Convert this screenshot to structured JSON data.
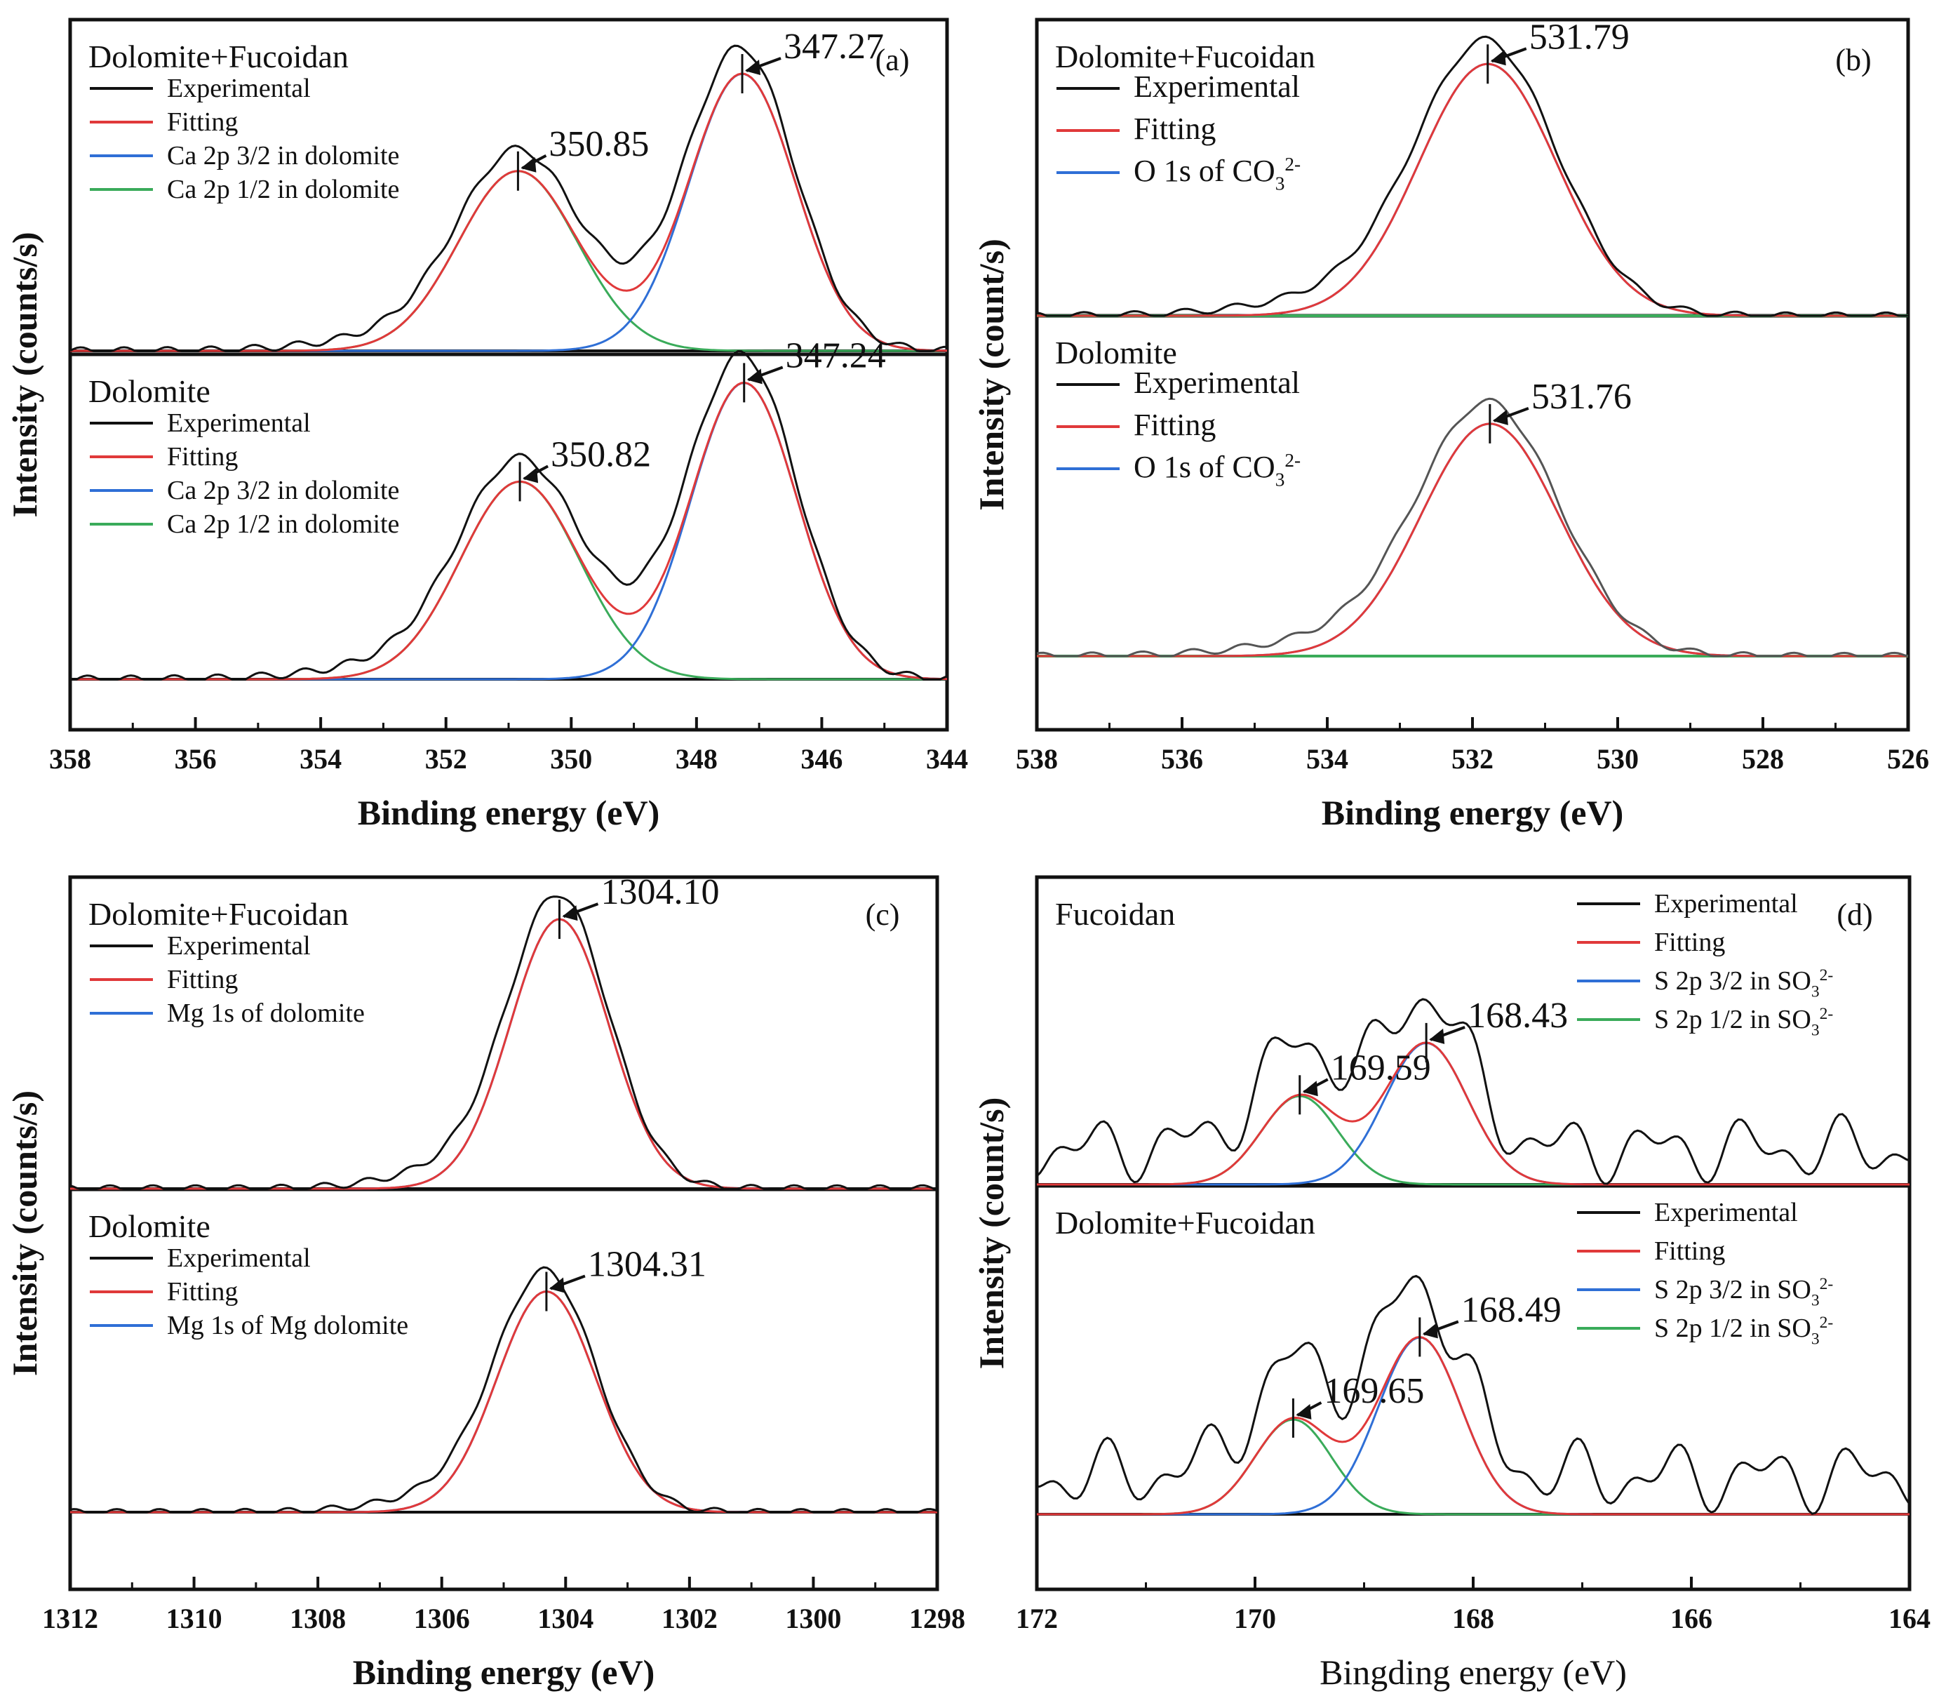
{
  "colors": {
    "experimental": "#111111",
    "experimental_gray": "#555555",
    "fitting": "#e0393a",
    "blue": "#2f6fd6",
    "green": "#3aab5a"
  },
  "chart_data": [
    {
      "type": "line",
      "id": "a",
      "panel_label": "(a)",
      "xlabel": "Binding energy (eV)",
      "ylabel": "Intensity (counts/s)",
      "xlim": [
        358,
        344
      ],
      "xticks": [
        358,
        356,
        354,
        352,
        350,
        348,
        346,
        344
      ],
      "subplots": [
        {
          "title": "Dolomite+Fucoidan",
          "legend": [
            "Experimental",
            "Fitting",
            "Ca 2p 3/2 in dolomite",
            "Ca 2p 1/2 in dolomite"
          ],
          "peaks": [
            {
              "label": "350.85",
              "x": 350.85,
              "height": 0.61,
              "series": "Ca 2p 1/2 in dolomite",
              "width": 0.95
            },
            {
              "label": "347.27",
              "x": 347.27,
              "height": 0.94,
              "series": "Ca 2p 3/2 in dolomite",
              "width": 0.85
            }
          ]
        },
        {
          "title": "Dolomite",
          "legend": [
            "Experimental",
            "Fitting",
            "Ca 2p 3/2 in dolomite",
            "Ca 2p 1/2 in dolomite"
          ],
          "peaks": [
            {
              "label": "350.82",
              "x": 350.82,
              "height": 0.64,
              "series": "Ca 2p 1/2 in dolomite",
              "width": 0.95
            },
            {
              "label": "347.24",
              "x": 347.24,
              "height": 0.96,
              "series": "Ca 2p 3/2 in dolomite",
              "width": 0.85
            }
          ]
        }
      ]
    },
    {
      "type": "line",
      "id": "b",
      "panel_label": "(b)",
      "xlabel": "Binding energy (eV)",
      "ylabel": "Intensity (count/s)",
      "xlim": [
        538,
        526
      ],
      "xticks": [
        538,
        536,
        534,
        532,
        530,
        528,
        526
      ],
      "subplots": [
        {
          "title": "Dolomite+Fucoidan",
          "legend": [
            "Experimental",
            "Fitting",
            "O 1s of CO3 2-"
          ],
          "peaks": [
            {
              "label": "531.79",
              "x": 531.79,
              "height": 0.92,
              "series": "O 1s of CO3 2-",
              "width": 0.95
            }
          ]
        },
        {
          "title": "Dolomite",
          "legend": [
            "Experimental",
            "Fitting",
            "O 1s of CO3 2-"
          ],
          "peaks": [
            {
              "label": "531.76",
              "x": 531.76,
              "height": 0.86,
              "series": "O 1s of CO3 2-",
              "width": 0.95
            }
          ]
        }
      ]
    },
    {
      "type": "line",
      "id": "c",
      "panel_label": "(c)",
      "xlabel": "Binding energy (eV)",
      "ylabel": "Intensity (counts/s)",
      "xlim": [
        1312,
        1298
      ],
      "xticks": [
        1312,
        1310,
        1308,
        1306,
        1304,
        1302,
        1300,
        1298
      ],
      "subplots": [
        {
          "title": "Dolomite+Fucoidan",
          "legend": [
            "Experimental",
            "Fitting",
            "Mg 1s of dolomite"
          ],
          "peaks": [
            {
              "label": "1304.10",
              "x": 1304.1,
              "height": 0.96,
              "series": "Mg 1s of dolomite",
              "width": 0.8
            }
          ]
        },
        {
          "title": "Dolomite",
          "legend": [
            "Experimental",
            "Fitting",
            "Mg 1s of Mg dolomite"
          ],
          "peaks": [
            {
              "label": "1304.31",
              "x": 1304.31,
              "height": 0.85,
              "series": "Mg 1s of Mg dolomite",
              "width": 0.8
            }
          ]
        }
      ]
    },
    {
      "type": "line",
      "id": "d",
      "panel_label": "(d)",
      "xlabel": "Bingding energy (eV)",
      "ylabel": "Intensity (count/s)",
      "xlim": [
        172,
        164
      ],
      "xticks": [
        172,
        170,
        168,
        166,
        164
      ],
      "subplots": [
        {
          "title": "Fucoidan",
          "legend": [
            "Experimental",
            "Fitting",
            "S 2p 3/2 in SO3 2-",
            "S 2p 1/2 in SO3 2-"
          ],
          "peaks": [
            {
              "label": "169.59",
              "x": 169.59,
              "height": 0.3,
              "series": "S 2p 1/2 in SO3 2-",
              "width": 0.35
            },
            {
              "label": "168.43",
              "x": 168.43,
              "height": 0.48,
              "series": "S 2p 3/2 in SO3 2-",
              "width": 0.38
            }
          ]
        },
        {
          "title": "Dolomite+Fucoidan",
          "legend": [
            "Experimental",
            "Fitting",
            "S 2p 3/2 in SO3 2-",
            "S 2p 1/2 in SO3 2-"
          ],
          "peaks": [
            {
              "label": "169.65",
              "x": 169.65,
              "height": 0.3,
              "series": "S 2p 1/2 in SO3 2-",
              "width": 0.35
            },
            {
              "label": "168.49",
              "x": 168.49,
              "height": 0.56,
              "series": "S 2p 3/2 in SO3 2-",
              "width": 0.38
            }
          ]
        }
      ]
    }
  ]
}
